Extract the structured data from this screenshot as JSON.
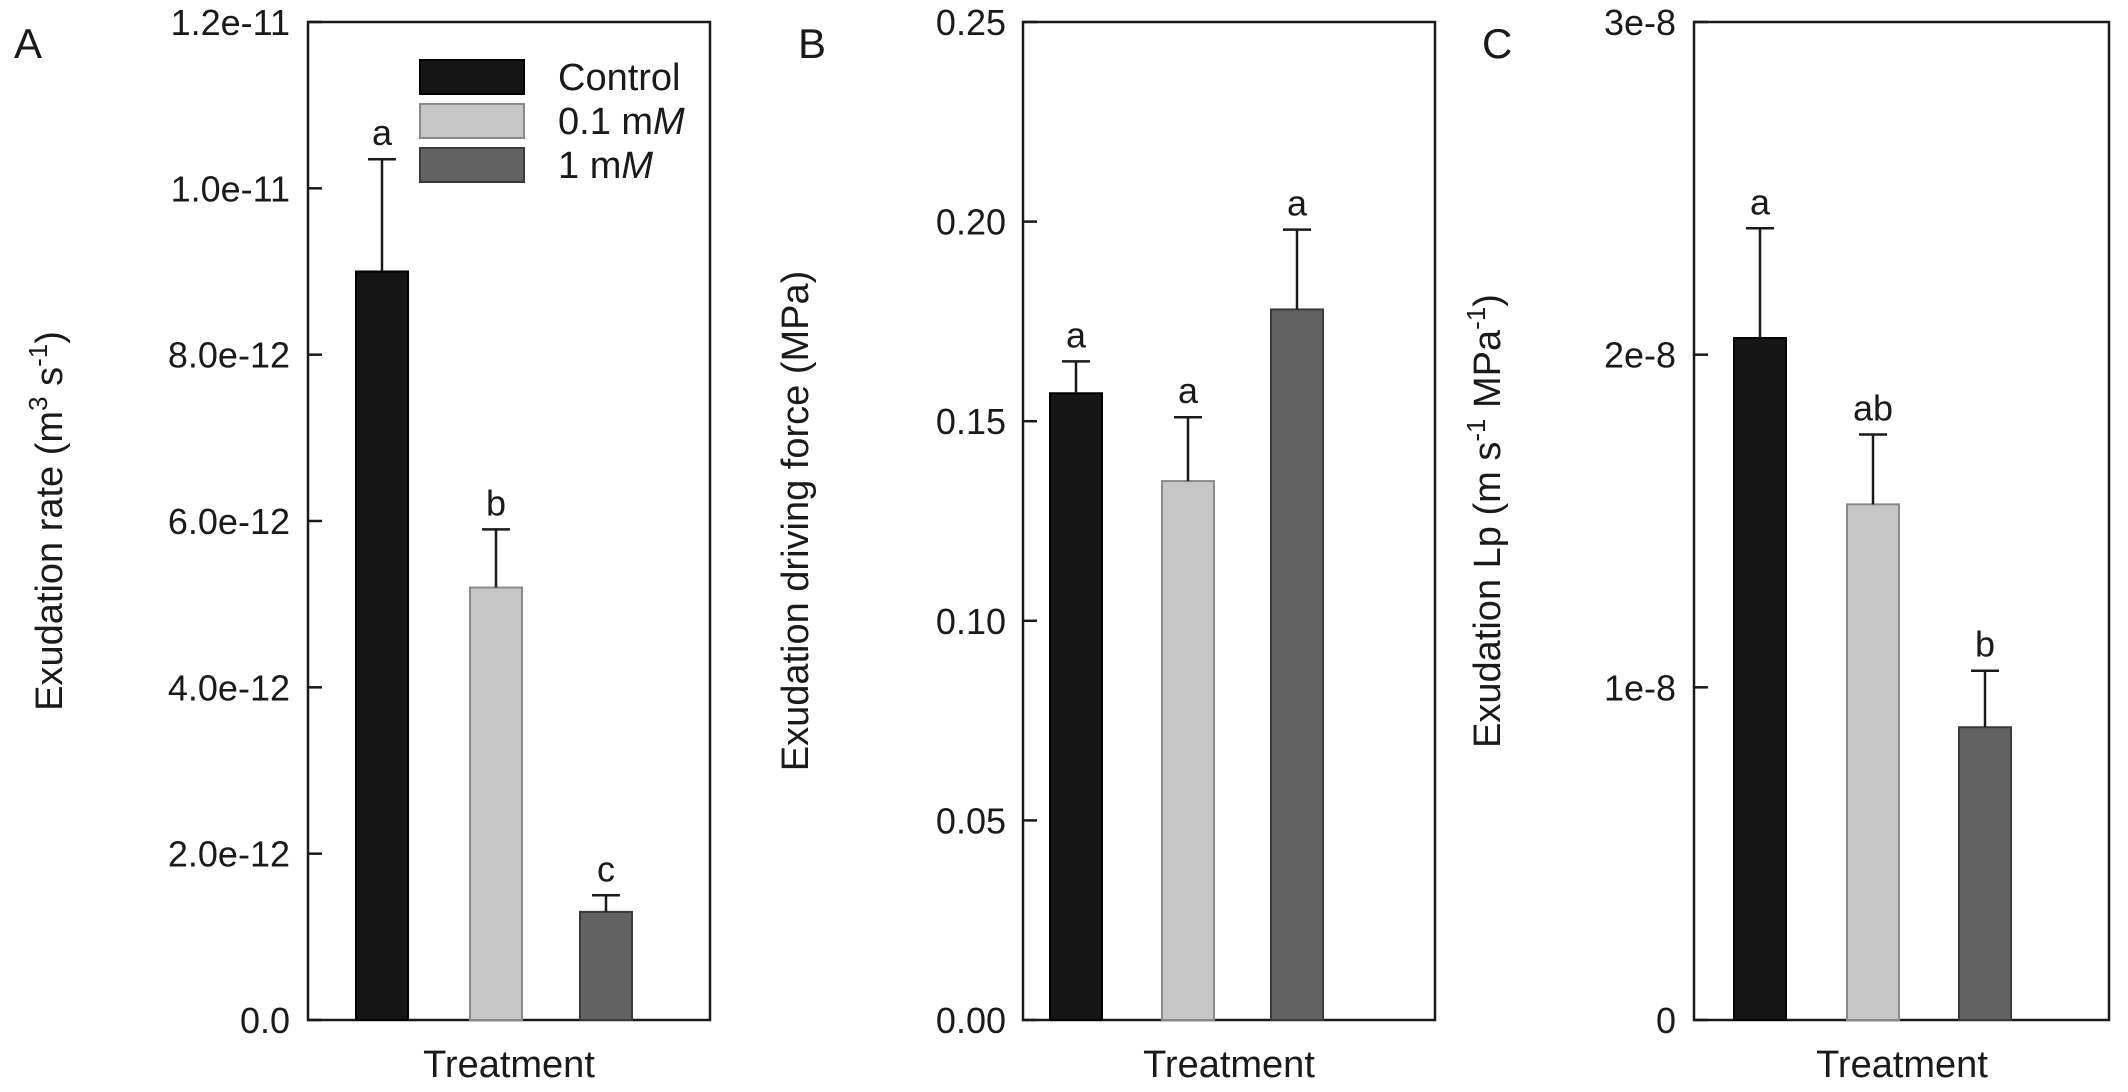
{
  "chart_data": [
    {
      "panel": "A",
      "type": "bar",
      "ylabel": "Exudation rate (m",
      "ylabel_sup1": "3",
      "ylabel_mid": " s",
      "ylabel_sup2": "-1",
      "ylabel_end": ")",
      "xlabel": "Treatment",
      "ylim": [
        0,
        1.2e-11
      ],
      "yticks": [
        {
          "v": 0,
          "label": "0.0"
        },
        {
          "v": 2e-12,
          "label": "2.0e-12"
        },
        {
          "v": 4e-12,
          "label": "4.0e-12"
        },
        {
          "v": 6e-12,
          "label": "6.0e-12"
        },
        {
          "v": 8e-12,
          "label": "8.0e-12"
        },
        {
          "v": 1e-11,
          "label": "1.0e-11"
        },
        {
          "v": 1.2e-11,
          "label": "1.2e-11"
        }
      ],
      "categories": [
        "Control",
        "0.1 mM",
        "1 mM"
      ],
      "values": [
        9e-12,
        5.2e-12,
        1.3e-12
      ],
      "errors": [
        1.35e-12,
        7e-13,
        2e-13
      ],
      "letters": [
        "a",
        "b",
        "c"
      ],
      "legend": {
        "placement": "top-right",
        "entries": [
          {
            "text": "Control",
            "unit": ""
          },
          {
            "text": "0.1 m",
            "unit": "M"
          },
          {
            "text": "1 m",
            "unit": "M"
          }
        ]
      }
    },
    {
      "panel": "B",
      "type": "bar",
      "ylabel": "Exudation driving force (MPa)",
      "xlabel": "Treatment",
      "ylim": [
        0,
        0.25
      ],
      "yticks": [
        {
          "v": 0,
          "label": "0.00"
        },
        {
          "v": 0.05,
          "label": "0.05"
        },
        {
          "v": 0.1,
          "label": "0.10"
        },
        {
          "v": 0.15,
          "label": "0.15"
        },
        {
          "v": 0.2,
          "label": "0.20"
        },
        {
          "v": 0.25,
          "label": "0.25"
        }
      ],
      "categories": [
        "Control",
        "0.1 mM",
        "1 mM"
      ],
      "values": [
        0.157,
        0.135,
        0.178
      ],
      "errors": [
        0.008,
        0.016,
        0.02
      ],
      "letters": [
        "a",
        "a",
        "a"
      ]
    },
    {
      "panel": "C",
      "type": "bar",
      "ylabel": "Exudation Lp (m s",
      "ylabel_sup1": "-1",
      "ylabel_mid": " MPa",
      "ylabel_sup2": "-1",
      "ylabel_end": ")",
      "xlabel": "Treatment",
      "ylim": [
        0,
        3e-08
      ],
      "yticks": [
        {
          "v": 0,
          "label": "0"
        },
        {
          "v": 1e-08,
          "label": "1e-8"
        },
        {
          "v": 2e-08,
          "label": "2e-8"
        },
        {
          "v": 3e-08,
          "label": "3e-8"
        }
      ],
      "categories": [
        "Control",
        "0.1 mM",
        "1 mM"
      ],
      "values": [
        2.05e-08,
        1.55e-08,
        8.8e-09
      ],
      "errors": [
        3.3e-09,
        2.1e-09,
        1.7e-09
      ],
      "letters": [
        "a",
        "ab",
        "b"
      ]
    }
  ],
  "colors": {
    "series": [
      "#161616",
      "#c6c6c6",
      "#626262"
    ],
    "series_edge": [
      "#000000",
      "#8a8a8a",
      "#3a3a3a"
    ],
    "axis": "#1a1a1a"
  }
}
